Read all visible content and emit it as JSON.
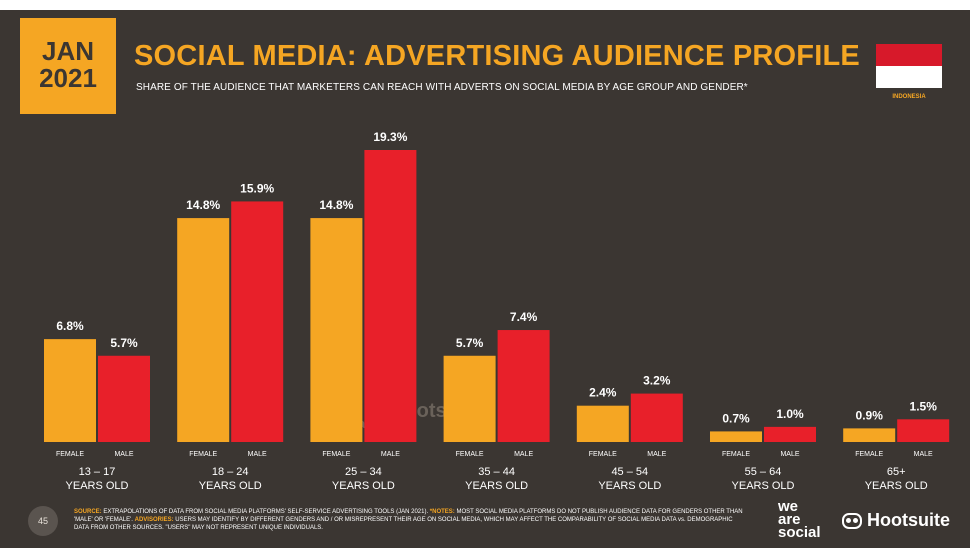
{
  "header": {
    "date_month": "JAN",
    "date_year": "2021",
    "title": "SOCIAL MEDIA: ADVERTISING AUDIENCE PROFILE",
    "subtitle": "SHARE OF THE AUDIENCE THAT MARKETERS CAN REACH WITH ADVERTS ON SOCIAL MEDIA BY AGE GROUP AND GENDER*",
    "country": "INDONESIA"
  },
  "colors": {
    "background": "#3b3632",
    "female": "#f5a623",
    "male": "#e8202a",
    "flag_red": "#d7192a",
    "flag_white": "#ffffff"
  },
  "chart_data": {
    "type": "bar",
    "categories": [
      "13 – 17",
      "18 – 24",
      "25 – 34",
      "35 – 44",
      "45 – 54",
      "55 – 64",
      "65+"
    ],
    "category_sublabel": "YEARS OLD",
    "series": [
      {
        "name": "FEMALE",
        "values": [
          6.8,
          14.8,
          14.8,
          5.7,
          2.4,
          0.7,
          0.9
        ],
        "labels": [
          "6.8%",
          "14.8%",
          "14.8%",
          "5.7%",
          "2.4%",
          "0.7%",
          "0.9%"
        ]
      },
      {
        "name": "MALE",
        "values": [
          5.7,
          15.9,
          19.3,
          7.4,
          3.2,
          1.0,
          1.5
        ],
        "labels": [
          "5.7%",
          "15.9%",
          "19.3%",
          "7.4%",
          "3.2%",
          "1.0%",
          "1.5%"
        ]
      }
    ],
    "ylim": [
      0,
      19.3
    ],
    "grid": false,
    "legend": "none"
  },
  "watermark": {
    "brand1": "we are social",
    "brand2": "Hootsuite"
  },
  "footer": {
    "page_number": "45",
    "source_label": "SOURCE:",
    "source_text": " EXTRAPOLATIONS OF DATA FROM SOCIAL MEDIA PLATFORMS' SELF-SERVICE ADVERTISING TOOLS (JAN 2021). ",
    "notes_label": "*NOTES:",
    "notes_text": " MOST SOCIAL MEDIA PLATFORMS DO NOT PUBLISH AUDIENCE DATA FOR GENDERS OTHER THAN 'MALE' OR 'FEMALE'. ",
    "advisories_label": "ADVISORIES:",
    "advisories_text": " USERS MAY IDENTIFY BY DIFFERENT GENDERS AND / OR MISREPRESENT THEIR AGE ON SOCIAL MEDIA, WHICH MAY AFFECT THE COMPARABILITY OF SOCIAL MEDIA DATA vs. DEMOGRAPHIC DATA FROM OTHER SOURCES. \"USERS\" MAY NOT REPRESENT UNIQUE INDIVIDUALS.",
    "logo_we": "we",
    "logo_are": "are",
    "logo_social": "social",
    "logo_hootsuite": "Hootsuite"
  }
}
